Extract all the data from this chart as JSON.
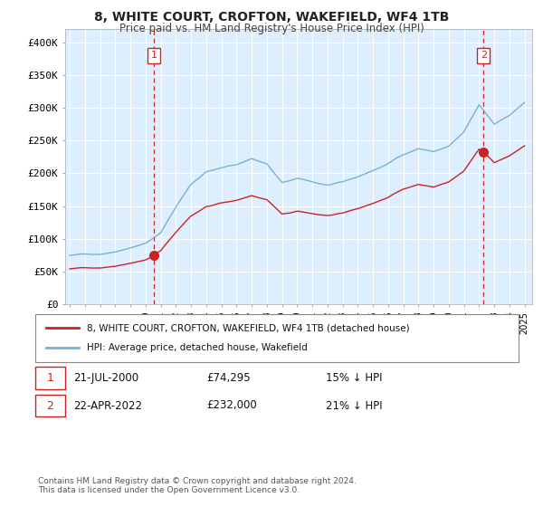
{
  "title": "8, WHITE COURT, CROFTON, WAKEFIELD, WF4 1TB",
  "subtitle": "Price paid vs. HM Land Registry's House Price Index (HPI)",
  "legend_line1": "8, WHITE COURT, CROFTON, WAKEFIELD, WF4 1TB (detached house)",
  "legend_line2": "HPI: Average price, detached house, Wakefield",
  "footnote": "Contains HM Land Registry data © Crown copyright and database right 2024.\nThis data is licensed under the Open Government Licence v3.0.",
  "annotation1": {
    "num": "1",
    "date": "21-JUL-2000",
    "price": "£74,295",
    "pct": "15% ↓ HPI"
  },
  "annotation2": {
    "num": "2",
    "date": "22-APR-2022",
    "price": "£232,000",
    "pct": "21% ↓ HPI"
  },
  "red_color": "#cc2222",
  "blue_color": "#7ab0d4",
  "background_color": "#ffffff",
  "plot_bg_color": "#ddeeff",
  "grid_color": "#ffffff",
  "sale1_year": 2000.55,
  "sale1_price": 74295,
  "sale2_year": 2022.3,
  "sale2_price": 232000,
  "ylim_min": 0,
  "ylim_max": 420000
}
